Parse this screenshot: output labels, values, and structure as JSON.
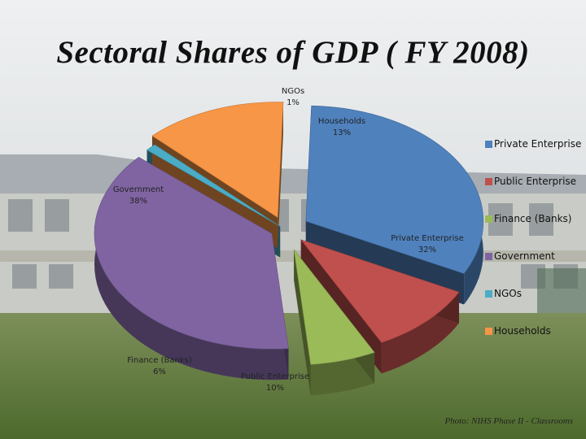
{
  "slide": {
    "title": "Sectoral Shares of GDP ( FY 2008)",
    "photo_credit": "Photo: NIHS Phase II - Classrooms"
  },
  "chart_data": {
    "type": "pie",
    "subtype": "3d-exploded",
    "title": "",
    "legend_position": "right",
    "categories": [
      "Private Enterprise",
      "Public Enterprise",
      "Finance (Banks)",
      "Government",
      "NGOs",
      "Households"
    ],
    "values": [
      32,
      10,
      6,
      38,
      1,
      13
    ],
    "value_labels": [
      "32%",
      "10%",
      "6%",
      "38%",
      "1%",
      "13%"
    ],
    "colors": [
      "#4F81BD",
      "#C0504D",
      "#9BBB59",
      "#8064A2",
      "#4BACC6",
      "#F79646"
    ],
    "legend_entries": [
      "Private Enterprise",
      "Public Enterprise",
      "Finance (Banks)",
      "Government",
      "NGOs",
      "Households"
    ]
  },
  "background": {
    "description_colors": {
      "sky": "#d9dde0",
      "roof": "#9aa0a6",
      "wall": "#c9ccc8",
      "grass": "#5f7a3c"
    }
  }
}
